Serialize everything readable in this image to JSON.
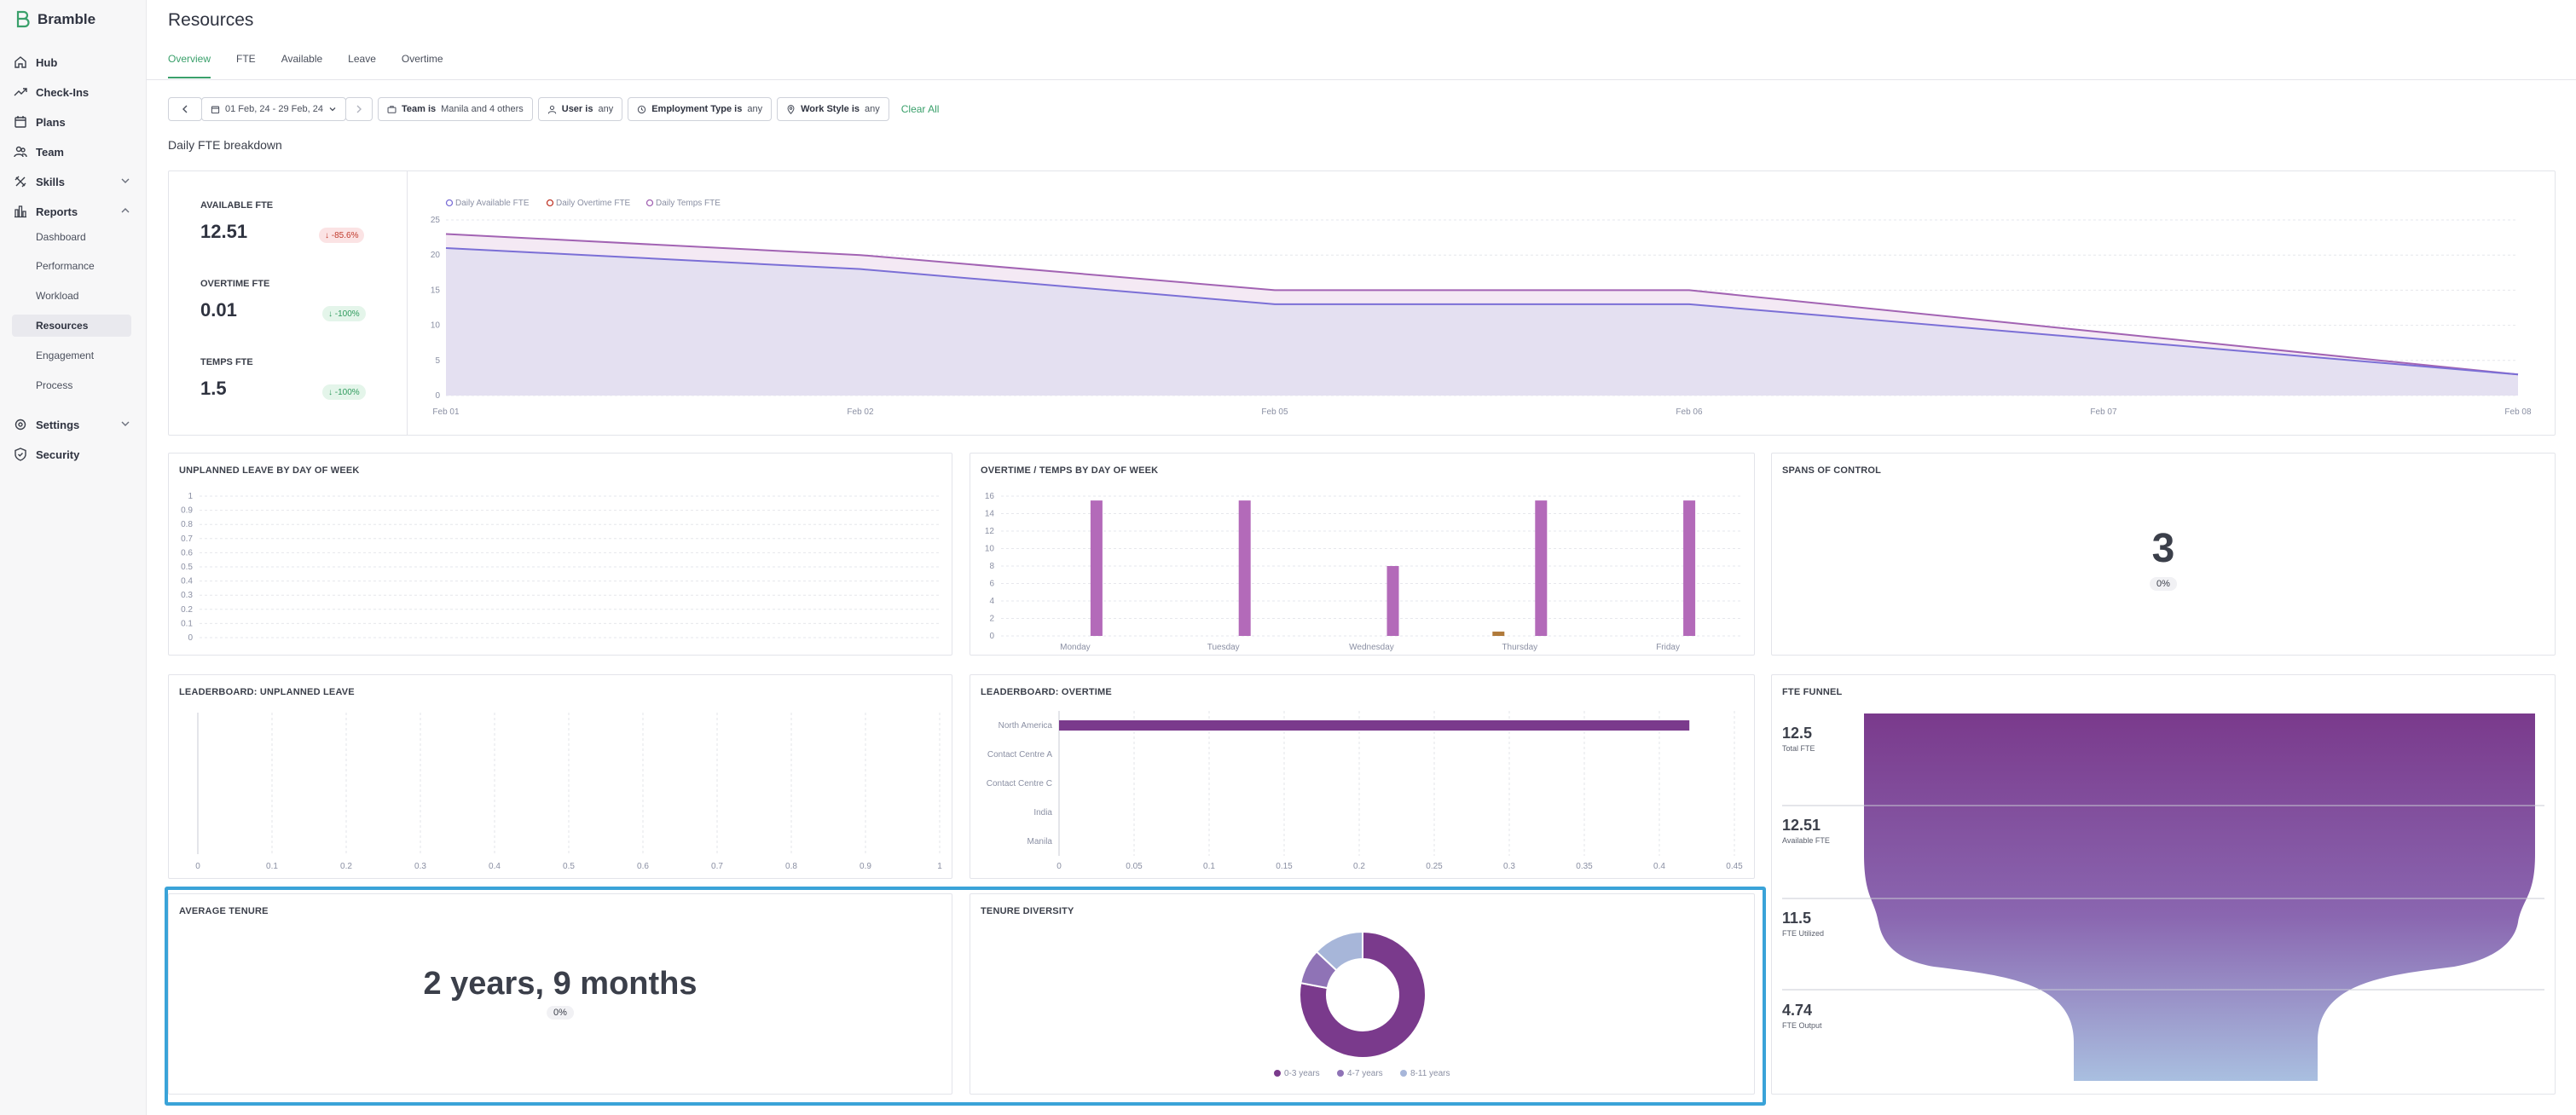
{
  "app": {
    "brand": "Bramble"
  },
  "sidebar": {
    "items": [
      {
        "label": "Hub",
        "icon": "home-icon"
      },
      {
        "label": "Check-Ins",
        "icon": "trend-icon"
      },
      {
        "label": "Plans",
        "icon": "calendar-icon"
      },
      {
        "label": "Team",
        "icon": "team-icon"
      },
      {
        "label": "Skills",
        "icon": "skills-icon"
      },
      {
        "label": "Reports",
        "icon": "reports-icon"
      },
      {
        "label": "Settings",
        "icon": "gear-icon"
      },
      {
        "label": "Security",
        "icon": "shield-icon"
      }
    ],
    "reports_sub": [
      "Dashboard",
      "Performance",
      "Workload",
      "Resources",
      "Engagement",
      "Process"
    ]
  },
  "page": {
    "title": "Resources",
    "tabs": [
      "Overview",
      "FTE",
      "Available",
      "Leave",
      "Overtime"
    ],
    "section_title": "Daily FTE breakdown"
  },
  "filters": {
    "date_range": "01 Feb, 24 - 29 Feb, 24",
    "team_key": "Team is",
    "team_val": "Manila and 4 others",
    "user_key": "User is",
    "user_val": "any",
    "emp_key": "Employment Type is",
    "emp_val": "any",
    "work_key": "Work Style is",
    "work_val": "any",
    "clear": "Clear All"
  },
  "kpis": {
    "available": {
      "label": "AVAILABLE FTE",
      "value": "12.51",
      "delta": "↓ -85.6%"
    },
    "overtime": {
      "label": "OVERTIME FTE",
      "value": "0.01",
      "delta": "↓ -100%"
    },
    "temps": {
      "label": "TEMPS FTE",
      "value": "1.5",
      "delta": "↓ -100%"
    }
  },
  "cards": {
    "unplanned": "UNPLANNED LEAVE BY DAY OF WEEK",
    "overtime_temps": "OVERTIME / TEMPS BY DAY OF WEEK",
    "spans": "SPANS OF CONTROL",
    "spans_value": "3",
    "spans_pct": "0%",
    "lb_unplanned": "LEADERBOARD: UNPLANNED LEAVE",
    "lb_overtime": "LEADERBOARD: OVERTIME",
    "funnel": "FTE FUNNEL",
    "avg_tenure": "AVERAGE TENURE",
    "avg_tenure_value": "2 years, 9 months",
    "avg_tenure_pct": "0%",
    "tenure_diversity": "TENURE DIVERSITY"
  },
  "colors": {
    "accent": "#3aa06b",
    "purple": "#a263b3",
    "dark_purple": "#7a3a8c",
    "blue_line": "#7b6fd6",
    "highlight": "#3aa3d8"
  },
  "chart_data": [
    {
      "type": "area",
      "title": "",
      "x": [
        "Feb 01",
        "Feb 02",
        "Feb 05",
        "Feb 06",
        "Feb 07",
        "Feb 08"
      ],
      "series": [
        {
          "name": "Daily Available FTE",
          "values": [
            21,
            18,
            13,
            13,
            8,
            3
          ]
        },
        {
          "name": "Daily Overtime FTE",
          "values": [
            0,
            0,
            0,
            0,
            0,
            0
          ]
        },
        {
          "name": "Daily Temps FTE",
          "values": [
            23,
            20,
            15,
            15,
            9,
            3
          ]
        }
      ],
      "ylim": [
        0,
        25
      ],
      "yticks": [
        "0",
        "5",
        "10",
        "15",
        "20",
        "25"
      ],
      "legend": "top-left"
    },
    {
      "type": "bar",
      "title": "UNPLANNED LEAVE BY DAY OF WEEK",
      "categories": [],
      "ylim": [
        0,
        1
      ],
      "yticks": [
        "0",
        "0.1",
        "0.2",
        "0.3",
        "0.4",
        "0.5",
        "0.6",
        "0.7",
        "0.8",
        "0.9",
        "1"
      ]
    },
    {
      "type": "bar",
      "title": "OVERTIME / TEMPS BY DAY OF WEEK",
      "categories": [
        "Monday",
        "Tuesday",
        "Wednesday",
        "Thursday",
        "Friday"
      ],
      "series": [
        {
          "values": [
            0,
            0,
            0,
            0.5,
            0
          ]
        },
        {
          "values": [
            15.5,
            15.5,
            8,
            15.5,
            15.5
          ]
        }
      ],
      "ylim": [
        0,
        16
      ],
      "yticks": [
        "0",
        "2",
        "4",
        "6",
        "8",
        "10",
        "12",
        "14",
        "16"
      ]
    },
    {
      "type": "bar",
      "title": "LEADERBOARD: UNPLANNED LEAVE",
      "categories": [],
      "xlim": [
        0,
        1
      ],
      "xticks": [
        "0",
        "0.1",
        "0.2",
        "0.3",
        "0.4",
        "0.5",
        "0.6",
        "0.7",
        "0.8",
        "0.9",
        "1"
      ]
    },
    {
      "type": "bar",
      "title": "LEADERBOARD: OVERTIME",
      "categories": [
        "North America",
        "Contact Centre A",
        "Contact Centre C",
        "India",
        "Manila"
      ],
      "values": [
        0.42,
        0,
        0,
        0,
        0
      ],
      "xlim": [
        0,
        0.45
      ],
      "xticks": [
        "0",
        "0.05",
        "0.1",
        "0.15",
        "0.2",
        "0.25",
        "0.3",
        "0.35",
        "0.4",
        "0.45"
      ]
    },
    {
      "type": "pie",
      "title": "TENURE DIVERSITY",
      "categories": [
        "0-3 years",
        "4-7 years",
        "8-11 years"
      ],
      "values": [
        78,
        9,
        13
      ]
    },
    {
      "type": "funnel",
      "title": "FTE FUNNEL",
      "categories": [
        "Total FTE",
        "Available FTE",
        "FTE Utilized",
        "FTE Output"
      ],
      "values": [
        "12.5",
        "12.51",
        "11.5",
        "4.74"
      ]
    }
  ]
}
